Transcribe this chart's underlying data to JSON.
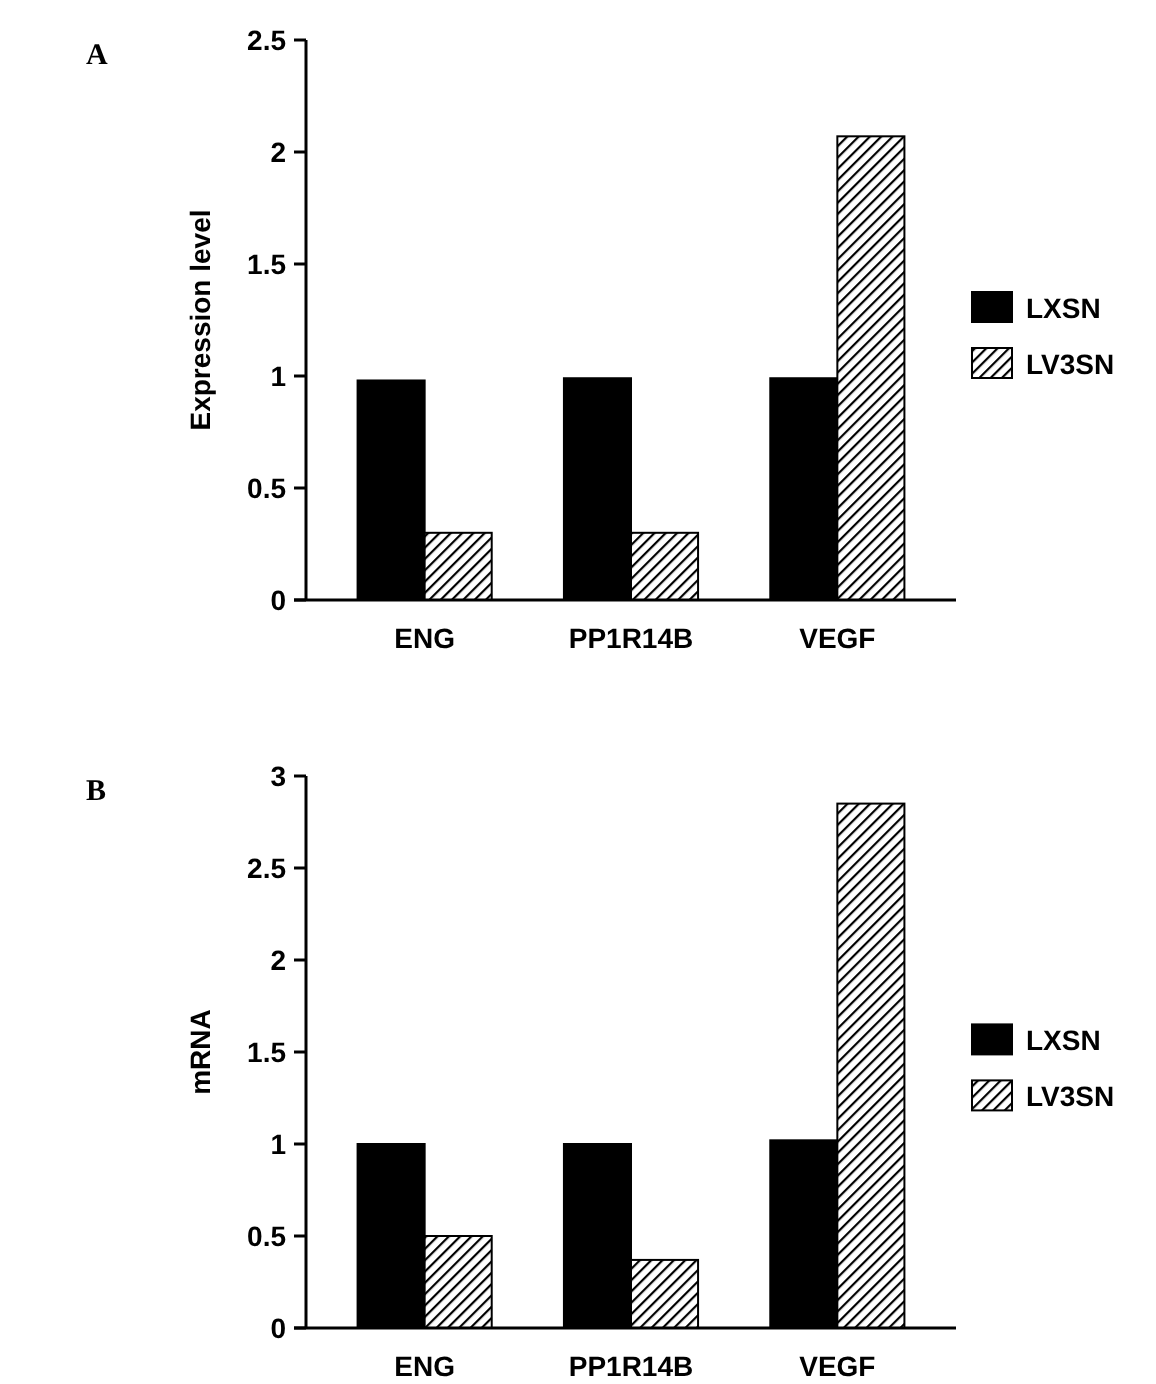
{
  "chart_data": [
    {
      "type": "bar",
      "title": "A",
      "ylabel": "Expression level",
      "categories": [
        "ENG",
        "PP1R14B",
        "VEGF"
      ],
      "series": [
        {
          "name": "LXSN",
          "color": "#000000",
          "values": [
            0.98,
            0.99,
            0.99
          ]
        },
        {
          "name": "LV3SN",
          "color": "#000000",
          "values": [
            0.3,
            0.3,
            2.07
          ]
        }
      ],
      "ylim": [
        0,
        2.5
      ],
      "yticks": [
        0,
        0.5,
        1,
        1.5,
        2,
        2.5
      ],
      "legend": "right",
      "grid": false
    },
    {
      "type": "bar",
      "title": "B",
      "ylabel": "mRNA",
      "categories": [
        "ENG",
        "PP1R14B",
        "VEGF"
      ],
      "series": [
        {
          "name": "LXSN",
          "color": "#000000",
          "values": [
            1.0,
            1.0,
            1.02
          ]
        },
        {
          "name": "LV3SN",
          "color": "#000000",
          "values": [
            0.5,
            0.37,
            2.85
          ]
        }
      ],
      "ylim": [
        0,
        3
      ],
      "yticks": [
        0,
        0.5,
        1,
        1.5,
        2,
        2.5,
        3
      ],
      "legend": "right",
      "grid": false
    }
  ]
}
